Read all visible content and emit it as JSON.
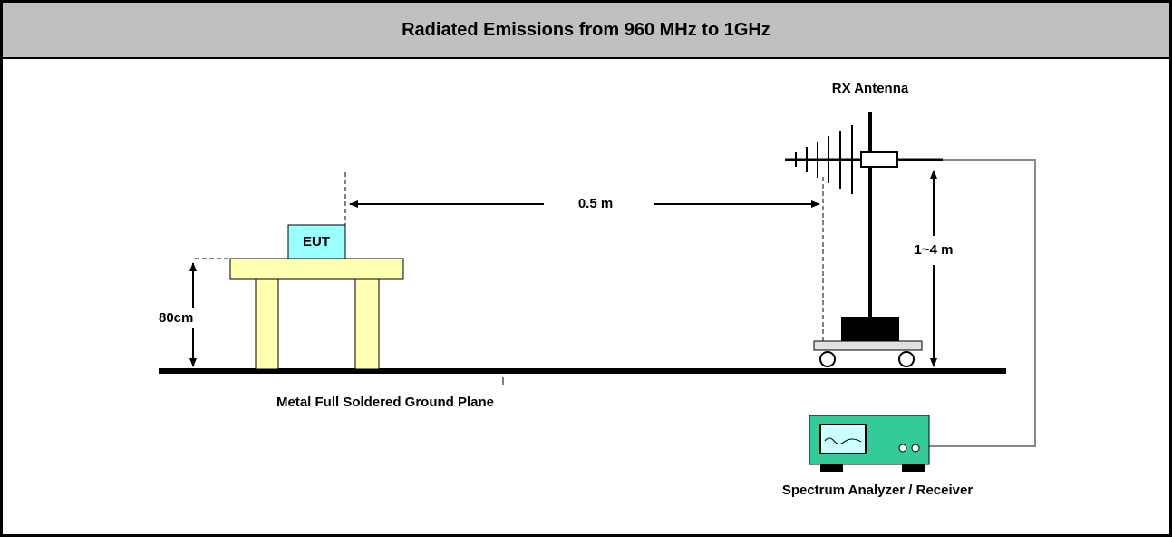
{
  "header": {
    "title": "Radiated Emissions from 960 MHz to 1GHz"
  },
  "diagram": {
    "antenna_label": "RX Antenna",
    "distance_label": "0.5 m",
    "eut_label": "EUT",
    "height_range_label": "1~4 m",
    "table_height_label": "80cm",
    "ground_plane_label": "Metal Full Soldered Ground Plane",
    "receiver_label": "Spectrum Analyzer / Receiver"
  }
}
